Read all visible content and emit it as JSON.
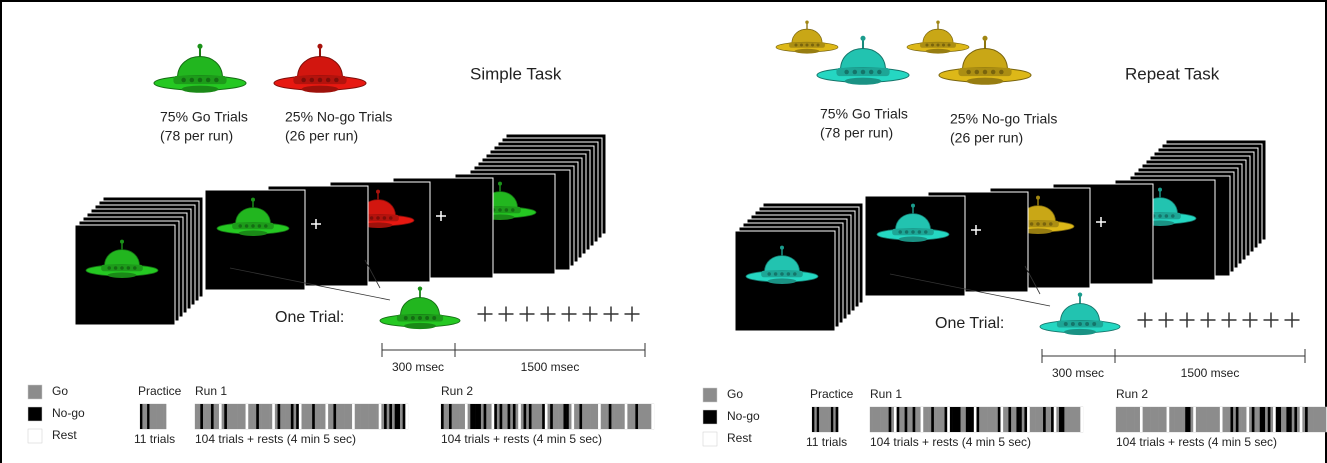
{
  "panels": [
    {
      "title": "Simple Task",
      "go_color": "#22b61f",
      "nogo_color": "#d2160f",
      "go_label": "75% Go Trials",
      "go_sub": "(78 per run)",
      "nogo_label": "25% No-go Trials",
      "nogo_sub": "(26 per run)",
      "trial_label": "One Trial:",
      "durations": [
        "300 msec",
        "1500 msec"
      ],
      "legend": [
        "Go",
        "No-go",
        "Rest"
      ],
      "blocks": [
        {
          "label": "Practice",
          "caption": "11 trials"
        },
        {
          "label": "Run 1",
          "caption": "104 trials + rests (4 min 5 sec)"
        },
        {
          "label": "Run 2",
          "caption": "104 trials + rests (4 min 5 sec)"
        }
      ]
    },
    {
      "title": "Repeat Task",
      "go_color": "#22c3b0",
      "nogo_color": "#c9a716",
      "go_label": "75% Go Trials",
      "go_sub": "(78 per run)",
      "nogo_label": "25% No-go Trials",
      "nogo_sub": "(26 per run)",
      "trial_label": "One Trial:",
      "durations": [
        "300 msec",
        "1500 msec"
      ],
      "legend": [
        "Go",
        "No-go",
        "Rest"
      ],
      "blocks": [
        {
          "label": "Practice",
          "caption": "11 trials"
        },
        {
          "label": "Run 1",
          "caption": "104 trials + rests (4 min 5 sec)"
        },
        {
          "label": "Run 2",
          "caption": "104 trials + rests (4 min 5 sec)"
        }
      ]
    }
  ]
}
